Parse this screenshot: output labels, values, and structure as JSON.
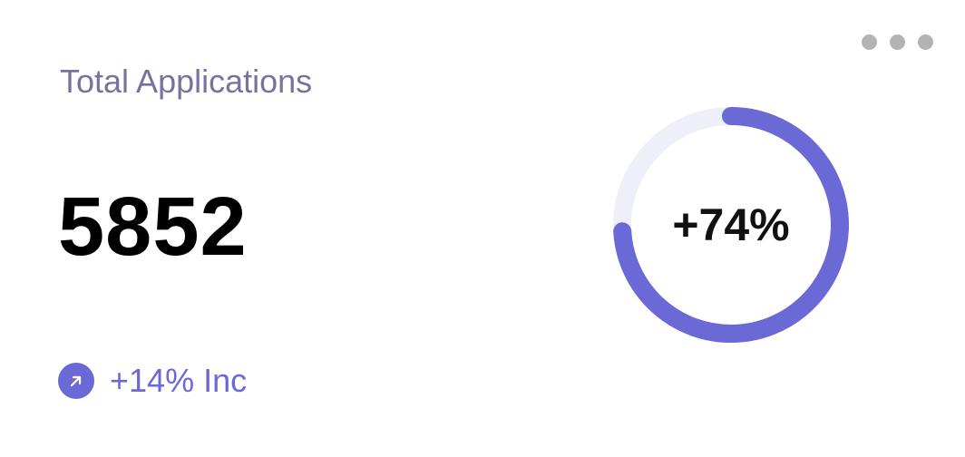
{
  "card": {
    "title": "Total Applications",
    "value": "5852",
    "trend": {
      "text": "+14% Inc",
      "icon": "arrow-up-right-icon"
    },
    "menu_icon": "more-horizontal-icon",
    "progress": {
      "label": "+74%",
      "percent": 74
    }
  },
  "colors": {
    "accent": "#6b69d6",
    "track": "#efeff9",
    "title": "#76749e",
    "menu": "#b3b3b3"
  }
}
